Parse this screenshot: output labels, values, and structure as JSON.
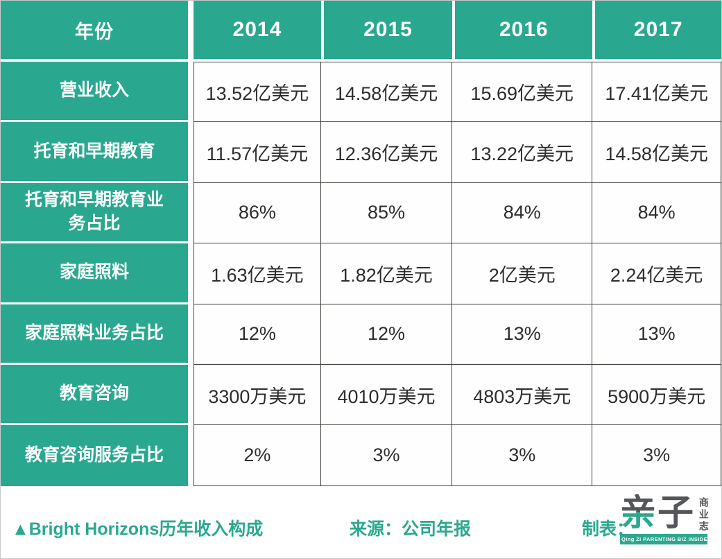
{
  "accent_color": "#2aa88f",
  "chart_data": {
    "type": "table",
    "title": "Bright Horizons历年收入构成",
    "header": {
      "corner": "年份",
      "years": [
        "2014",
        "2015",
        "2016",
        "2017"
      ]
    },
    "rows": [
      {
        "label": "营业收入",
        "values": [
          "13.52亿美元",
          "14.58亿美元",
          "15.69亿美元",
          "17.41亿美元"
        ]
      },
      {
        "label": "托育和早期教育",
        "values": [
          "11.57亿美元",
          "12.36亿美元",
          "13.22亿美元",
          "14.58亿美元"
        ]
      },
      {
        "label": "托育和早期教育业务占比",
        "values": [
          "86%",
          "85%",
          "84%",
          "84%"
        ]
      },
      {
        "label": "家庭照料",
        "values": [
          "1.63亿美元",
          "1.82亿美元",
          "2亿美元",
          "2.24亿美元"
        ]
      },
      {
        "label": "家庭照料业务占比",
        "values": [
          "12%",
          "12%",
          "13%",
          "13%"
        ]
      },
      {
        "label": "教育咨询",
        "values": [
          "3300万美元",
          "4010万美元",
          "4803万美元",
          "5900万美元"
        ]
      },
      {
        "label": "教育咨询服务占比",
        "values": [
          "2%",
          "3%",
          "3%",
          "3%"
        ]
      }
    ]
  },
  "footer": {
    "caption": "▲Bright Horizons历年收入构成",
    "source": "来源：公司年报",
    "credit": "制表：",
    "logo": {
      "qin": "亲",
      "zi": "子",
      "vertical": "商业志",
      "banner": "Qing Zi PARENTING BIZ INSIDER"
    }
  }
}
